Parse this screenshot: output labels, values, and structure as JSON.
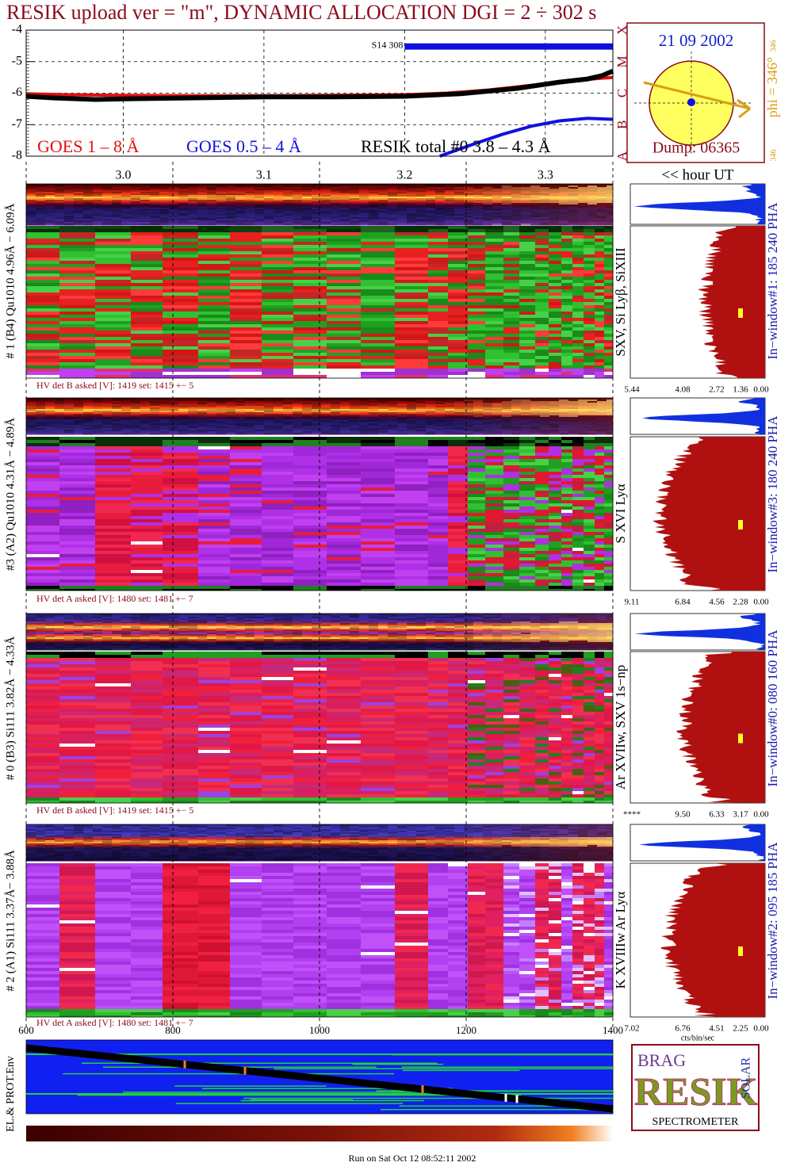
{
  "title": "RESIK upload ver = \"m\", DYNAMIC ALLOCATION  DGI =   2 ÷ 302 s",
  "chart_data": {
    "type": "line",
    "xlim": [
      2.931,
      3.348
    ],
    "xticks": [
      {
        "value": 3,
        "label": "3.0"
      },
      3.1,
      3.2,
      3.3
    ],
    "xlabel": "<< hour UT",
    "ylim": [
      -8,
      -4
    ],
    "yticks": [
      -8,
      -7,
      -6,
      -5,
      -4
    ],
    "class_labels": [
      "A",
      "B",
      "C",
      "M",
      "X"
    ],
    "grid": true,
    "annotation": "S14 308",
    "series": [
      {
        "name": "GOES 1 – 8 Å",
        "color": "#e01010",
        "x": [
          2.931,
          2.96,
          3.0,
          3.05,
          3.1,
          3.15,
          3.2,
          3.23,
          3.26,
          3.29,
          3.32,
          3.348
        ],
        "values": [
          -6.02,
          -6.05,
          -6.07,
          -6.08,
          -6.08,
          -6.07,
          -6.05,
          -6.0,
          -5.9,
          -5.75,
          -5.6,
          -5.5
        ]
      },
      {
        "name": "GOES 0.5 – 4 Å",
        "color": "#1010e0",
        "x": [
          3.225,
          3.25,
          3.27,
          3.29,
          3.31,
          3.33,
          3.348
        ],
        "values": [
          -8.0,
          -7.6,
          -7.3,
          -7.05,
          -6.88,
          -6.8,
          -6.83
        ]
      },
      {
        "name": "RESIK total #0  3.8 – 4.3 Å",
        "color": "#000000",
        "x": [
          2.931,
          2.95,
          2.98,
          3.0,
          3.05,
          3.1,
          3.15,
          3.2,
          3.24,
          3.28,
          3.31,
          3.33,
          3.34,
          3.348
        ],
        "values": [
          -6.1,
          -6.15,
          -6.2,
          -6.18,
          -6.15,
          -6.12,
          -6.12,
          -6.1,
          -6.02,
          -5.85,
          -5.65,
          -5.55,
          -5.45,
          -5.3
        ]
      }
    ]
  },
  "sun": {
    "date": "21 09 2002",
    "phi_label": "phi = 346°",
    "corner_top": "346",
    "corner_bottom": "346",
    "dump": "Dump: 06365"
  },
  "panels": [
    {
      "detector_label": "# 1 (B4) Qu1010 4.96Å − 6.09Å",
      "hv": "HV det B asked [V]:  1419 set:  1415 +−    5",
      "lines": "SXV, Si Lyβ, SiXIII",
      "hist_ticks": [
        "5.44",
        "4.08",
        "2.72",
        "1.36",
        "0.00"
      ],
      "window": "In−window#1:  185 240 PHA"
    },
    {
      "detector_label": "#3 (A2) Qu1010  4.31Å − 4.89Å",
      "hv": "HV det A asked [V]:  1480 set:  1481 +−    7",
      "lines": "S XVI Lyα",
      "hist_ticks": [
        "9.11",
        "6.84",
        "4.56",
        "2.28",
        "0.00"
      ],
      "window": "In−window#3:  180 240 PHA"
    },
    {
      "detector_label": "# 0 (B3) Si111  3.82Å − 4.33Å",
      "hv": "HV det B asked [V]:  1419 set:  1415 +−    5",
      "lines": "Ar XVIIw, SXV 1s−np",
      "hist_ticks": [
        "****",
        "9.50",
        "6.33",
        "3.17",
        "0.00"
      ],
      "window": "In−window#0:  080 160 PHA"
    },
    {
      "detector_label": "# 2 (A1) Si111  3.37Å− 3.88Å",
      "hv": "HV det A asked [V]:  1480 set:  1481 +−    7",
      "lines": "K XVIIIw  Ar Lyα",
      "hist_ticks": [
        "7.02",
        "6.76",
        "4.51",
        "2.25",
        "0.00"
      ],
      "window": "In−window#2:  095 185 PHA"
    }
  ],
  "bin_axis": {
    "xlim": [
      600,
      1400
    ],
    "xticks": [
      600,
      800,
      1000,
      1200,
      1400
    ]
  },
  "hist_axis_label": "cts/bin/sec",
  "env_label": "EL.& PROT.Env",
  "logo": {
    "top": "BRAG",
    "middle": "RESIK",
    "side": "SOLAR",
    "bottom": "SPECTROMETER"
  },
  "footer": "Run on Sat Oct 12 08:52:11 2002"
}
